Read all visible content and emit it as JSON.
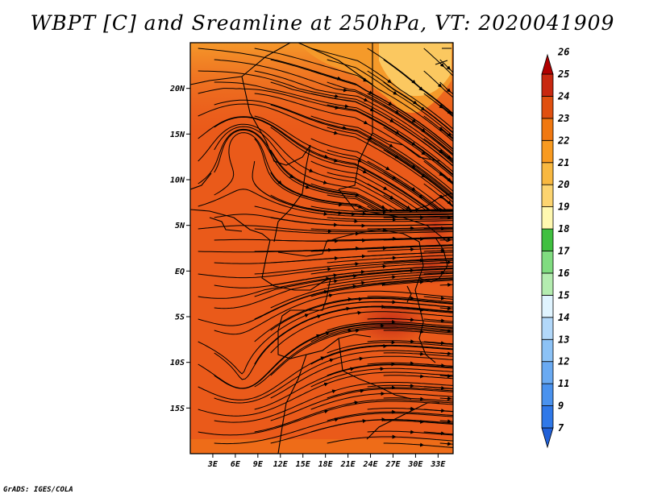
{
  "title": "WBPT [C] and Sreamline at 250hPa, VT: 2020041909",
  "footer": "GrADS: IGES/COLA",
  "map": {
    "lon_labels": [
      "3E",
      "6E",
      "9E",
      "12E",
      "15E",
      "18E",
      "21E",
      "24E",
      "27E",
      "30E",
      "33E"
    ],
    "lat_labels": [
      "20N",
      "15N",
      "10N",
      "5N",
      "EQ",
      "5S",
      "10S",
      "15S"
    ],
    "lon_range": [
      0,
      35
    ],
    "lat_range": [
      -20,
      25
    ]
  },
  "colorbar": {
    "labels": [
      "7",
      "9",
      "11",
      "12",
      "13",
      "14",
      "15",
      "16",
      "17",
      "18",
      "19",
      "20",
      "21",
      "22",
      "23",
      "24",
      "25",
      "26"
    ],
    "colors": [
      "#2060d8",
      "#2f78e8",
      "#4a92ee",
      "#6aaaf2",
      "#8cc2f6",
      "#b2d8fa",
      "#e0f4ff",
      "#b4ecb0",
      "#80dc80",
      "#40c040",
      "#fff8b0",
      "#fcd470",
      "#f8b840",
      "#f89a20",
      "#f07810",
      "#e05010",
      "#c82810",
      "#b00000"
    ]
  },
  "field": {
    "base_color": "#ea5a1a",
    "warm_core_color": "#c8301a",
    "cool_north_color": "#f59a2a",
    "coolest_color": "#fbc860"
  }
}
